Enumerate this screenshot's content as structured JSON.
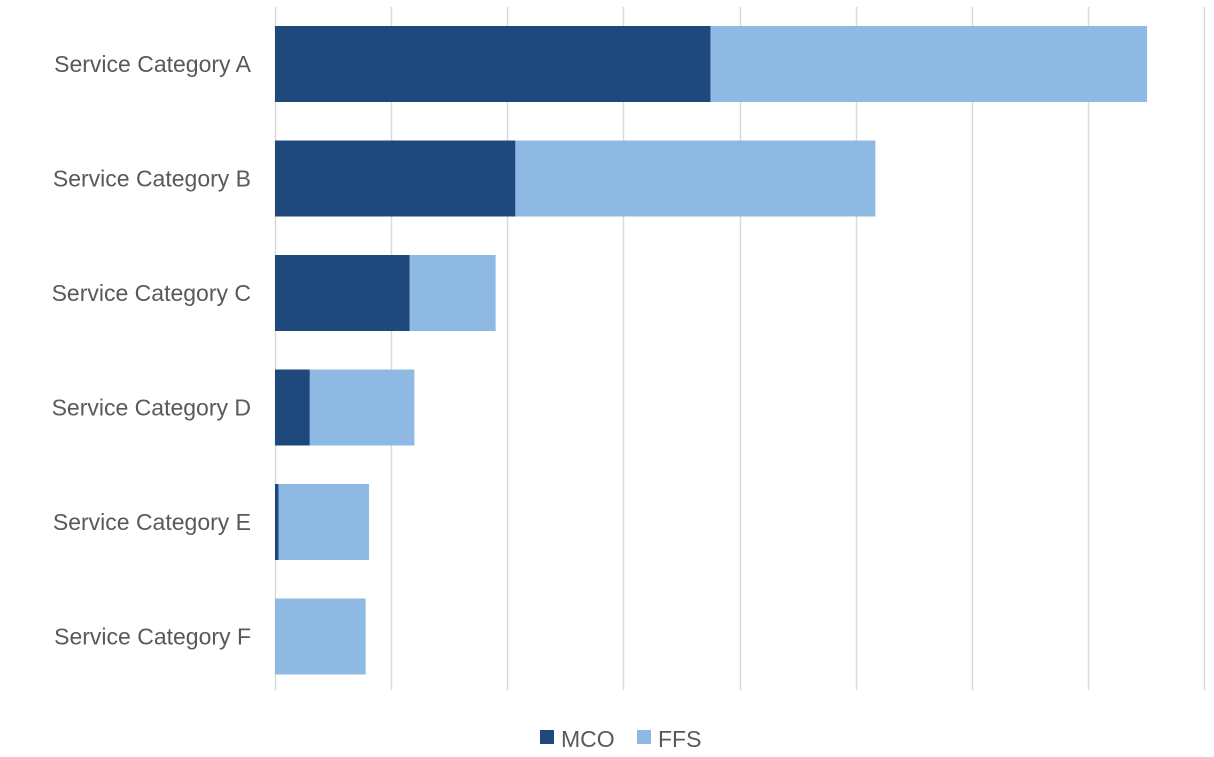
{
  "chart_data": {
    "type": "bar",
    "orientation": "horizontal",
    "stacked": true,
    "title": "",
    "xlabel": "",
    "ylabel": "",
    "categories": [
      "Service Category A",
      "Service Category B",
      "Service Category C",
      "Service Category D",
      "Service Category E",
      "Service Category F"
    ],
    "series": [
      {
        "name": "MCO",
        "color": "#1f497d",
        "values": [
          3.75,
          2.07,
          1.16,
          0.3,
          0.03,
          0.0
        ]
      },
      {
        "name": "FFS",
        "color": "#8db9e3",
        "values": [
          3.76,
          3.1,
          0.74,
          0.9,
          0.78,
          0.78
        ]
      }
    ],
    "xlim": [
      0,
      8
    ],
    "x_gridlines": 8,
    "tick_labels_visible": false,
    "grid": true,
    "legend_position": "bottom"
  }
}
